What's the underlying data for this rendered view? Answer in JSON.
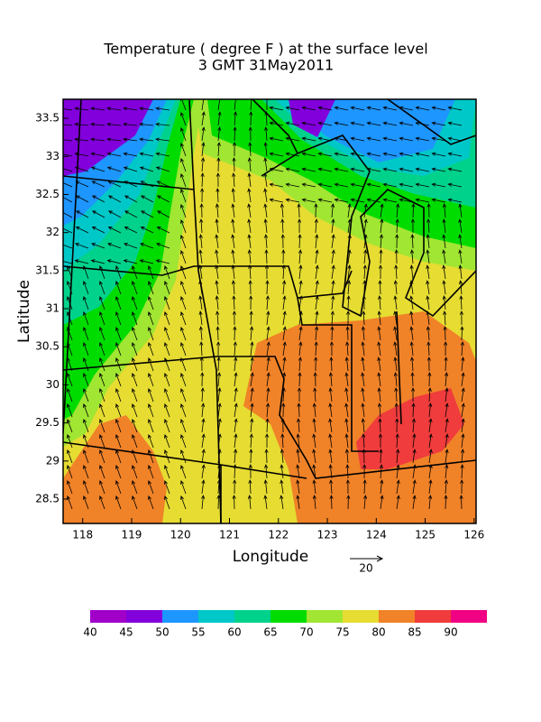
{
  "title": "Temperature ( degree F ) at the surface level",
  "subtitle": "3 GMT 31May2011",
  "x_axis": {
    "label": "Longitude",
    "lim": [
      117.6,
      126.04
    ],
    "ticks": [
      118,
      119,
      120,
      121,
      122,
      123,
      124,
      125,
      126
    ]
  },
  "y_axis": {
    "label": "Latitude",
    "lim": [
      28.18,
      33.75
    ],
    "ticks": [
      28.5,
      29,
      29.5,
      30,
      30.5,
      31,
      31.5,
      32,
      32.5,
      33,
      33.5
    ]
  },
  "vector_reference": {
    "label": "20"
  },
  "colorbar": {
    "levels": [
      40,
      45,
      50,
      55,
      60,
      65,
      70,
      75,
      80,
      85,
      90
    ],
    "colors": [
      "#a000c8",
      "#8200dc",
      "#1e96ff",
      "#00c8c8",
      "#00d28c",
      "#00dc00",
      "#a0e632",
      "#e6dc32",
      "#f08228",
      "#f03c3c",
      "#f00082"
    ]
  }
}
